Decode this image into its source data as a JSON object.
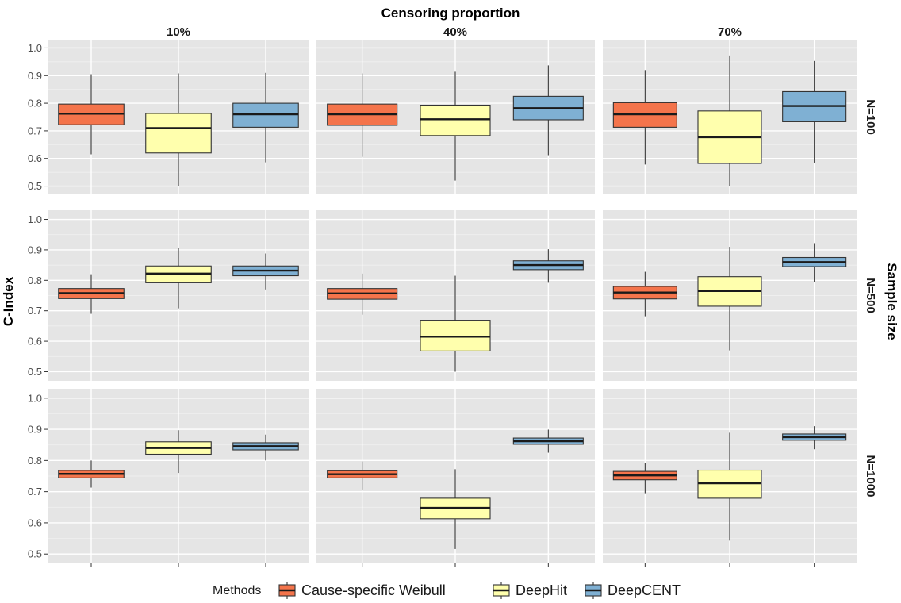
{
  "chart_data": {
    "type": "boxplot",
    "title": "Censoring proportion",
    "ylabel": "C-Index",
    "right_label": "Sample size",
    "ylim": [
      0.47,
      1.03
    ],
    "yticks": [
      "0.5",
      "0.6",
      "0.7",
      "0.8",
      "0.9",
      "1.0"
    ],
    "censoring_levels": [
      "10%",
      "40%",
      "70%"
    ],
    "sample_sizes": [
      "N=100",
      "N=500",
      "N=1000"
    ],
    "legend": {
      "title": "Methods",
      "position": "bottom",
      "items": [
        {
          "name": "Cause-specific Weibull",
          "color": "#f4744b"
        },
        {
          "name": "DeepHit",
          "color": "#ffffad"
        },
        {
          "name": "DeepCENT",
          "color": "#7fb0d3"
        }
      ]
    },
    "panels": [
      [
        [
          [
            0.615,
            0.722,
            0.762,
            0.797,
            0.905
          ],
          [
            0.5,
            0.62,
            0.71,
            0.763,
            0.908
          ],
          [
            0.586,
            0.713,
            0.76,
            0.8,
            0.91
          ]
        ],
        [
          [
            0.606,
            0.72,
            0.76,
            0.797,
            0.908
          ],
          [
            0.52,
            0.683,
            0.742,
            0.793,
            0.914
          ],
          [
            0.612,
            0.74,
            0.782,
            0.825,
            0.937
          ]
        ],
        [
          [
            0.578,
            0.713,
            0.76,
            0.802,
            0.92
          ],
          [
            0.5,
            0.582,
            0.677,
            0.772,
            0.973
          ],
          [
            0.585,
            0.733,
            0.79,
            0.842,
            0.953
          ]
        ]
      ],
      [
        [
          [
            0.69,
            0.74,
            0.758,
            0.773,
            0.82
          ],
          [
            0.708,
            0.792,
            0.822,
            0.847,
            0.906
          ],
          [
            0.77,
            0.815,
            0.832,
            0.847,
            0.888
          ]
        ],
        [
          [
            0.687,
            0.738,
            0.757,
            0.773,
            0.822
          ],
          [
            0.5,
            0.568,
            0.615,
            0.669,
            0.815
          ],
          [
            0.792,
            0.835,
            0.85,
            0.864,
            0.902
          ]
        ],
        [
          [
            0.682,
            0.739,
            0.76,
            0.78,
            0.828
          ],
          [
            0.57,
            0.715,
            0.765,
            0.812,
            0.91
          ],
          [
            0.795,
            0.845,
            0.86,
            0.875,
            0.922
          ]
        ]
      ],
      [
        [
          [
            0.713,
            0.744,
            0.757,
            0.768,
            0.8
          ],
          [
            0.76,
            0.82,
            0.84,
            0.86,
            0.897
          ],
          [
            0.8,
            0.834,
            0.846,
            0.857,
            0.883
          ]
        ],
        [
          [
            0.707,
            0.744,
            0.756,
            0.767,
            0.797
          ],
          [
            0.516,
            0.613,
            0.648,
            0.679,
            0.772
          ],
          [
            0.825,
            0.852,
            0.862,
            0.872,
            0.899
          ]
        ],
        [
          [
            0.695,
            0.738,
            0.752,
            0.765,
            0.793
          ],
          [
            0.543,
            0.679,
            0.727,
            0.769,
            0.889
          ],
          [
            0.836,
            0.865,
            0.875,
            0.885,
            0.91
          ]
        ]
      ]
    ]
  }
}
